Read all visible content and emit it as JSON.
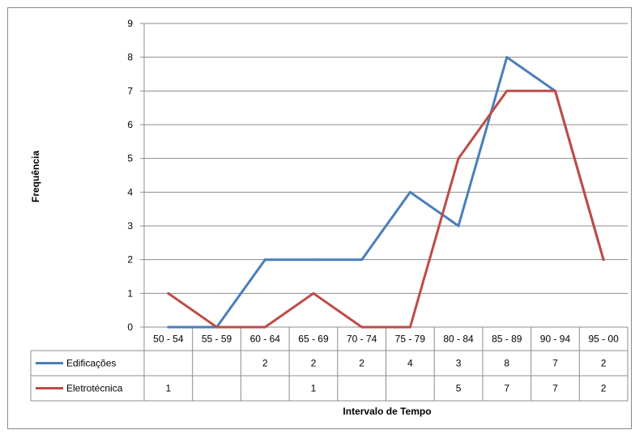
{
  "chart_data": {
    "type": "line",
    "title": "",
    "xlabel": "Intervalo de Tempo",
    "ylabel": "Frequência",
    "ylim": [
      0,
      9
    ],
    "yticks": [
      0,
      1,
      2,
      3,
      4,
      5,
      6,
      7,
      8,
      9
    ],
    "grid": true,
    "legend": "data-table",
    "categories": [
      "50 - 54",
      "55 - 59",
      "60 - 64",
      "65 - 69",
      "70 - 74",
      "75 - 79",
      "80 - 84",
      "85 - 89",
      "90 - 94",
      "95 - 00"
    ],
    "series": [
      {
        "name": "Edificações",
        "color": "#4a7ebb",
        "values": [
          0,
          0,
          2,
          2,
          2,
          4,
          3,
          8,
          7,
          2
        ],
        "table_values": [
          "",
          "",
          "2",
          "2",
          "2",
          "4",
          "3",
          "8",
          "7",
          "2"
        ]
      },
      {
        "name": "Eletrotécnica",
        "color": "#be4b48",
        "values": [
          1,
          0,
          0,
          1,
          0,
          0,
          5,
          7,
          7,
          2
        ],
        "table_values": [
          "1",
          "",
          "",
          "1",
          "",
          "",
          "5",
          "7",
          "7",
          "2"
        ]
      }
    ]
  }
}
